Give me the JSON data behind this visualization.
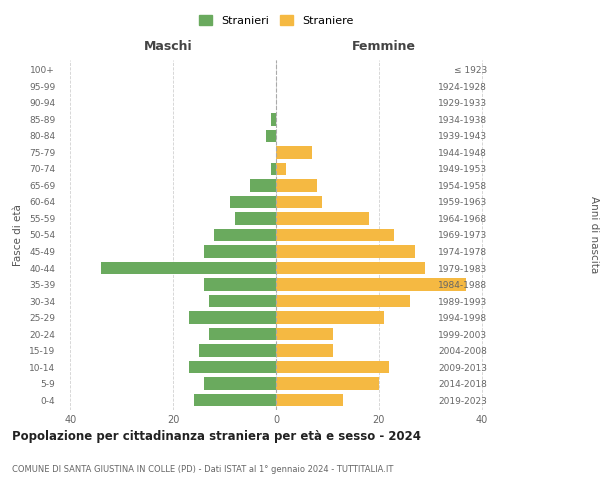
{
  "age_groups": [
    "0-4",
    "5-9",
    "10-14",
    "15-19",
    "20-24",
    "25-29",
    "30-34",
    "35-39",
    "40-44",
    "45-49",
    "50-54",
    "55-59",
    "60-64",
    "65-69",
    "70-74",
    "75-79",
    "80-84",
    "85-89",
    "90-94",
    "95-99",
    "100+"
  ],
  "birth_years": [
    "2019-2023",
    "2014-2018",
    "2009-2013",
    "2004-2008",
    "1999-2003",
    "1994-1998",
    "1989-1993",
    "1984-1988",
    "1979-1983",
    "1974-1978",
    "1969-1973",
    "1964-1968",
    "1959-1963",
    "1954-1958",
    "1949-1953",
    "1944-1948",
    "1939-1943",
    "1934-1938",
    "1929-1933",
    "1924-1928",
    "≤ 1923"
  ],
  "males": [
    16,
    14,
    17,
    15,
    13,
    17,
    13,
    14,
    34,
    14,
    12,
    8,
    9,
    5,
    1,
    0,
    2,
    1,
    0,
    0,
    0
  ],
  "females": [
    13,
    20,
    22,
    11,
    11,
    21,
    26,
    37,
    29,
    27,
    23,
    18,
    9,
    8,
    2,
    7,
    0,
    0,
    0,
    0,
    0
  ],
  "male_color": "#6aaa5e",
  "female_color": "#f5b942",
  "male_label": "Stranieri",
  "female_label": "Straniere",
  "title": "Popolazione per cittadinanza straniera per età e sesso - 2024",
  "subtitle": "COMUNE DI SANTA GIUSTINA IN COLLE (PD) - Dati ISTAT al 1° gennaio 2024 - TUTTITALIA.IT",
  "xlabel_left": "Maschi",
  "xlabel_right": "Femmine",
  "ylabel_left": "Fasce di età",
  "ylabel_right": "Anni di nascita",
  "xlim": 42,
  "background_color": "#ffffff",
  "grid_color": "#cccccc"
}
